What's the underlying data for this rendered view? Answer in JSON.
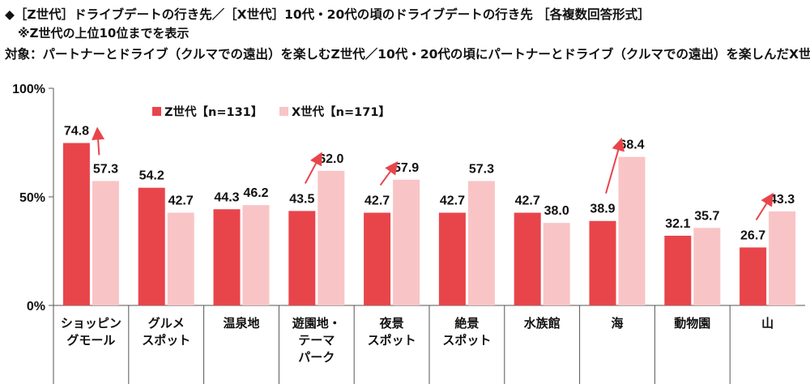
{
  "header": {
    "title": "◆［Z世代］ドライブデートの行き先／［X世代］10代・20代の頃のドライブデートの行き先 ［各複数回答形式］",
    "note": "※Z世代の上位10位までを表示",
    "target": "対象：パートナーとドライブ（クルマでの遠出）を楽しむZ世代／10代・20代の頃にパートナーとドライブ（クルマでの遠出）を楽しんだX世代"
  },
  "chart_data": {
    "type": "bar",
    "categories": [
      [
        "ショッピン",
        "グモール"
      ],
      [
        "グルメ",
        "スポット"
      ],
      [
        "温泉地"
      ],
      [
        "遊園地・",
        "テーマ",
        "パーク"
      ],
      [
        "夜景",
        "スポット"
      ],
      [
        "絶景",
        "スポット"
      ],
      [
        "水族館"
      ],
      [
        "海"
      ],
      [
        "動物園"
      ],
      [
        "山"
      ]
    ],
    "series": [
      {
        "name": "Z世代【n=131】",
        "color": "#e8454b",
        "values": [
          74.8,
          54.2,
          44.3,
          43.5,
          42.7,
          42.7,
          42.7,
          38.9,
          32.1,
          26.7
        ]
      },
      {
        "name": "X世代【n=171】",
        "color": "#f9c4c5",
        "values": [
          57.3,
          42.7,
          46.2,
          62.0,
          57.9,
          57.3,
          38.0,
          68.4,
          35.7,
          43.3
        ]
      }
    ],
    "value_labels": [
      [
        "74.8",
        "54.2",
        "44.3",
        "43.5",
        "42.7",
        "42.7",
        "42.7",
        "38.9",
        "32.1",
        "26.7"
      ],
      [
        "57.3",
        "42.7",
        "46.2",
        "62.0",
        "57.9",
        "57.3",
        "38.0",
        "68.4",
        "35.7",
        "43.3"
      ]
    ],
    "yticks": [
      "0%",
      "50%",
      "100%"
    ],
    "ylim": [
      0,
      100
    ],
    "legend_position": "top-left",
    "arrows": [
      {
        "category_index": 0,
        "direction": "Z-higher"
      },
      {
        "category_index": 3,
        "direction": "X-higher"
      },
      {
        "category_index": 4,
        "direction": "X-higher"
      },
      {
        "category_index": 7,
        "direction": "X-higher"
      },
      {
        "category_index": 9,
        "direction": "X-higher"
      }
    ],
    "arrow_color": "#e8454b",
    "grid": false
  }
}
